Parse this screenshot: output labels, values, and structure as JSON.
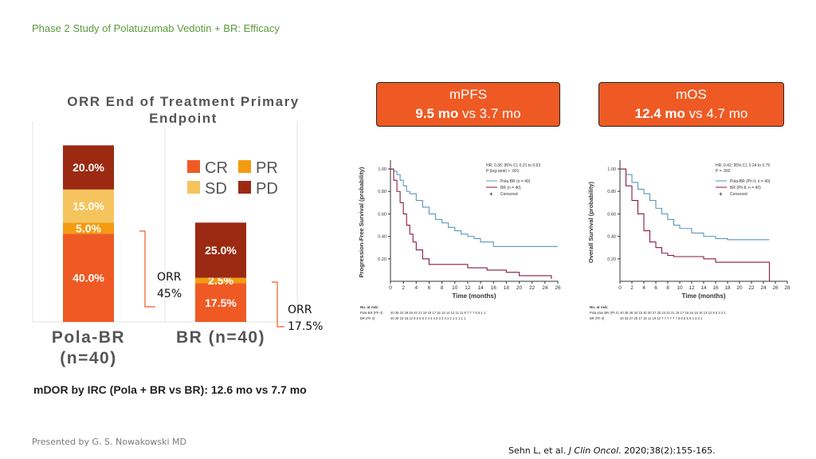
{
  "slide_title": "Phase 2 Study of Polatuzumab Vedotin + BR: Efficacy",
  "mpfs": {
    "label": "mPFS",
    "bold": "9.5 mo",
    "rest": " vs 3.7 mo"
  },
  "mos": {
    "label": "mOS",
    "bold": "12.4 mo",
    "rest": " vs 4.7 mo"
  },
  "orr_annotations": [
    {
      "line1": "ORR",
      "line2": "45%"
    },
    {
      "line1": "ORR",
      "line2": "17.5%"
    }
  ],
  "mdor": "mDOR by IRC (Pola + BR vs BR): 12.6 mo vs 7.7 mo",
  "presenter": "Presented by G. S. Nowakowski MD",
  "citation": {
    "authors": "Sehn L, et al. ",
    "journal": "J Clin Oncol",
    "rest": ". 2020;38(2):155-165."
  },
  "colors": {
    "CR": "#ef5a24",
    "PR": "#f39c12",
    "SD": "#f5c45e",
    "PD": "#9c2a12",
    "callout": "#ef5a24",
    "title_green": "#5a9a3c",
    "pola_line": "#5b95bf",
    "br_line": "#8b1a3a"
  },
  "chart_data": [
    {
      "type": "bar",
      "stacked": true,
      "title": "ORR End of Treatment Primary Endpoint",
      "categories": [
        "Pola-BR (n=40)",
        "BR (n=40)"
      ],
      "series": [
        {
          "name": "CR",
          "values": [
            40.0,
            17.5
          ],
          "labels": [
            "40.0%",
            "17.5%"
          ]
        },
        {
          "name": "PR",
          "values": [
            5.0,
            2.5
          ],
          "labels": [
            "5.0%",
            "2.5%"
          ]
        },
        {
          "name": "SD",
          "values": [
            15.0,
            0
          ],
          "labels": [
            "15.0%",
            ""
          ]
        },
        {
          "name": "PD",
          "values": [
            20.0,
            25.0
          ],
          "labels": [
            "20.0%",
            "25.0%"
          ]
        }
      ],
      "legend": "right, 2x2"
    },
    {
      "type": "line",
      "ylabel": "Progression-Free Survival (probability)",
      "xlabel": "Time (months)",
      "xticks": [
        "0",
        "2",
        "4",
        "6",
        "8",
        "10",
        "12",
        "14",
        "16",
        "18",
        "20",
        "22",
        "24",
        "26"
      ],
      "yticks": [
        "1.00",
        "0.80",
        "0.60",
        "0.40",
        "0.20"
      ],
      "stats": [
        "HR, 0.36; 95% CI, 0.21 to 0.63",
        "P (log-rank) < .001"
      ],
      "legend": [
        "Pola-BR (n = 40)",
        "BR (n = 40)",
        "Censored"
      ],
      "risk_header": "No. at risk:",
      "risk_rows": [
        {
          "label": "Pola-BR (Ph II)",
          "values": "40 36 32 28 26 24 21 19 18 17 16 15 14 12 11 11 8 7 7 7 6 5 1 1"
        },
        {
          "label": "BR (Ph II)",
          "values": "40 29 23 18 12 8 5 5 5 4 4 4 4 3 3 3 3 3 2 1 1 1 1 1"
        }
      ],
      "series": [
        {
          "name": "Pola-BR (n = 40)",
          "x": [
            0,
            0.5,
            1,
            1.5,
            2,
            2.5,
            3,
            4,
            5,
            6,
            7,
            8,
            9,
            10,
            11,
            12,
            13,
            14,
            16,
            17,
            18,
            26
          ],
          "y": [
            1.0,
            0.98,
            0.95,
            0.9,
            0.85,
            0.8,
            0.78,
            0.72,
            0.66,
            0.6,
            0.55,
            0.52,
            0.48,
            0.45,
            0.42,
            0.4,
            0.38,
            0.35,
            0.31,
            0.31,
            0.31,
            0.31
          ]
        },
        {
          "name": "BR (n = 40)",
          "x": [
            0,
            0.5,
            1,
            1.5,
            2,
            2.5,
            3,
            3.5,
            4,
            5,
            6,
            7,
            8,
            10,
            12,
            14,
            15,
            16,
            18,
            20,
            22,
            24,
            25
          ],
          "y": [
            1.0,
            0.9,
            0.8,
            0.7,
            0.6,
            0.5,
            0.42,
            0.35,
            0.28,
            0.2,
            0.15,
            0.15,
            0.15,
            0.15,
            0.12,
            0.12,
            0.1,
            0.1,
            0.08,
            0.05,
            0.05,
            0.05,
            0.02
          ]
        }
      ]
    },
    {
      "type": "line",
      "ylabel": "Overall Survival (probability)",
      "xlabel": "Time (months)",
      "xticks": [
        "0",
        "2",
        "4",
        "6",
        "8",
        "10",
        "12",
        "14",
        "16",
        "18",
        "20",
        "22",
        "24",
        "26",
        "28"
      ],
      "yticks": [
        "1.00",
        "0.80",
        "0.60",
        "0.40",
        "0.20"
      ],
      "stats": [
        "HR, 0.42; 95% CI, 0.24 to 0.75",
        "P = .002"
      ],
      "legend": [
        "Pola-BR (Ph II; n = 40)",
        "BR (Ph II; n = 40)",
        "Censored"
      ],
      "risk_header": "No. at risk:",
      "risk_rows": [
        {
          "label": "Pola plus BR (Ph II)",
          "values": "40 38 36 34 33 30 30 27 25 24 22 21 19 17 16 16 15 15 13 12 9 5 3 2 1"
        },
        {
          "label": "BR (Ph II)",
          "values": "40 33 27 25 17 15 11 10 10 7 7 7 7 7 7 6 6 6 5 5 4 3 3 1"
        }
      ],
      "series": [
        {
          "name": "Pola-BR (Ph II; n = 40)",
          "x": [
            0,
            1,
            2,
            3,
            4,
            5,
            6,
            7,
            8,
            9,
            10,
            12,
            14,
            16,
            18,
            20,
            22,
            24,
            25
          ],
          "y": [
            1.0,
            0.95,
            0.88,
            0.82,
            0.78,
            0.72,
            0.65,
            0.6,
            0.55,
            0.5,
            0.47,
            0.43,
            0.4,
            0.38,
            0.37,
            0.37,
            0.37,
            0.37,
            0.37
          ]
        },
        {
          "name": "BR (Ph II; n = 40)",
          "x": [
            0,
            1,
            2,
            3,
            4,
            5,
            6,
            7,
            8,
            9,
            10,
            12,
            14,
            16,
            18,
            20,
            22,
            24,
            24.5,
            25
          ],
          "y": [
            1.0,
            0.85,
            0.72,
            0.6,
            0.45,
            0.35,
            0.3,
            0.25,
            0.23,
            0.22,
            0.22,
            0.22,
            0.2,
            0.17,
            0.17,
            0.17,
            0.17,
            0.17,
            0.17,
            0.0
          ]
        }
      ]
    }
  ]
}
